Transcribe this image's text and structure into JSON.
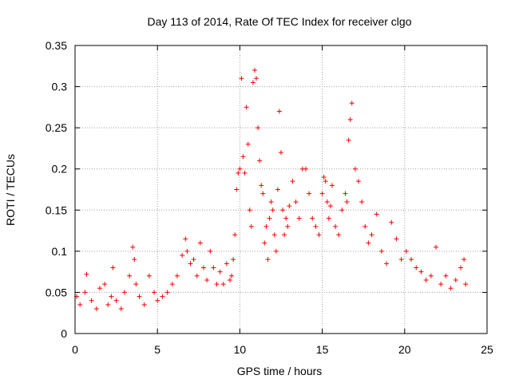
{
  "chart_data": {
    "type": "scatter",
    "title": "Day 113 of 2014, Rate Of TEC Index for receiver clgo",
    "xlabel": "GPS time / hours",
    "ylabel": "ROTI / TECUs",
    "xlim": [
      0,
      25
    ],
    "ylim": [
      0,
      0.35
    ],
    "xticks": [
      0,
      5,
      10,
      15,
      20,
      25
    ],
    "xtick_labels": [
      "0",
      "5",
      "10",
      "15",
      "20",
      "25"
    ],
    "yticks": [
      0,
      0.05,
      0.1,
      0.15,
      0.2,
      0.25,
      0.3,
      0.35
    ],
    "ytick_labels": [
      "0",
      "0.05",
      "0.1",
      "0.15",
      "0.2",
      "0.25",
      "0.3",
      "0.35"
    ],
    "grid": true,
    "marker": "+",
    "color": "#ff0000",
    "series": [
      {
        "x": [
          0.1,
          0.3,
          0.6,
          0.7,
          1.0,
          1.3,
          1.5,
          1.8,
          2.0,
          2.2,
          2.3,
          2.5,
          2.8,
          3.0,
          3.3,
          3.5,
          3.6,
          3.7,
          3.9,
          4.2,
          4.5,
          4.8,
          5.0,
          5.3,
          5.6,
          5.9,
          6.2,
          6.5,
          6.7,
          6.8,
          7.0,
          7.2,
          7.4,
          7.6,
          7.8,
          8.0,
          8.2,
          8.4,
          8.6,
          8.8,
          9.0,
          9.2,
          9.4,
          9.5,
          9.6,
          9.7,
          9.8,
          9.9,
          10.0,
          10.1,
          10.2,
          10.3,
          10.4,
          10.5,
          10.6,
          10.7,
          10.8,
          10.9,
          11.0,
          11.1,
          11.2,
          11.3,
          11.4,
          11.5,
          11.6,
          11.7,
          11.8,
          11.9,
          12.0,
          12.1,
          12.2,
          12.3,
          12.4,
          12.5,
          12.6,
          12.7,
          12.8,
          12.9,
          13.0,
          13.2,
          13.4,
          13.6,
          13.8,
          14.0,
          14.2,
          14.4,
          14.6,
          14.8,
          15.0,
          15.1,
          15.2,
          15.3,
          15.4,
          15.5,
          15.6,
          15.8,
          16.0,
          16.2,
          16.4,
          16.5,
          16.6,
          16.7,
          16.8,
          17.0,
          17.2,
          17.4,
          17.6,
          17.8,
          18.0,
          18.3,
          18.6,
          18.9,
          19.2,
          19.5,
          19.8,
          20.1,
          20.4,
          20.7,
          21.0,
          21.3,
          21.6,
          21.9,
          22.2,
          22.5,
          22.8,
          23.1,
          23.4,
          23.6,
          23.7
        ],
        "y": [
          0.045,
          0.035,
          0.05,
          0.072,
          0.04,
          0.03,
          0.055,
          0.06,
          0.035,
          0.045,
          0.08,
          0.04,
          0.03,
          0.05,
          0.07,
          0.105,
          0.09,
          0.06,
          0.045,
          0.035,
          0.07,
          0.05,
          0.04,
          0.045,
          0.05,
          0.06,
          0.07,
          0.095,
          0.115,
          0.1,
          0.085,
          0.09,
          0.07,
          0.11,
          0.08,
          0.065,
          0.1,
          0.08,
          0.06,
          0.075,
          0.06,
          0.085,
          0.065,
          0.07,
          0.09,
          0.12,
          0.175,
          0.195,
          0.2,
          0.31,
          0.215,
          0.195,
          0.275,
          0.23,
          0.15,
          0.13,
          0.305,
          0.32,
          0.31,
          0.25,
          0.21,
          0.18,
          0.17,
          0.11,
          0.13,
          0.09,
          0.14,
          0.16,
          0.15,
          0.12,
          0.1,
          0.175,
          0.27,
          0.22,
          0.15,
          0.12,
          0.14,
          0.13,
          0.155,
          0.185,
          0.16,
          0.14,
          0.2,
          0.2,
          0.17,
          0.14,
          0.13,
          0.12,
          0.17,
          0.19,
          0.185,
          0.16,
          0.14,
          0.155,
          0.18,
          0.13,
          0.12,
          0.15,
          0.17,
          0.16,
          0.235,
          0.26,
          0.28,
          0.2,
          0.185,
          0.16,
          0.13,
          0.11,
          0.12,
          0.145,
          0.1,
          0.085,
          0.135,
          0.115,
          0.09,
          0.1,
          0.09,
          0.08,
          0.075,
          0.065,
          0.07,
          0.105,
          0.06,
          0.07,
          0.055,
          0.065,
          0.08,
          0.09,
          0.06
        ]
      }
    ]
  }
}
